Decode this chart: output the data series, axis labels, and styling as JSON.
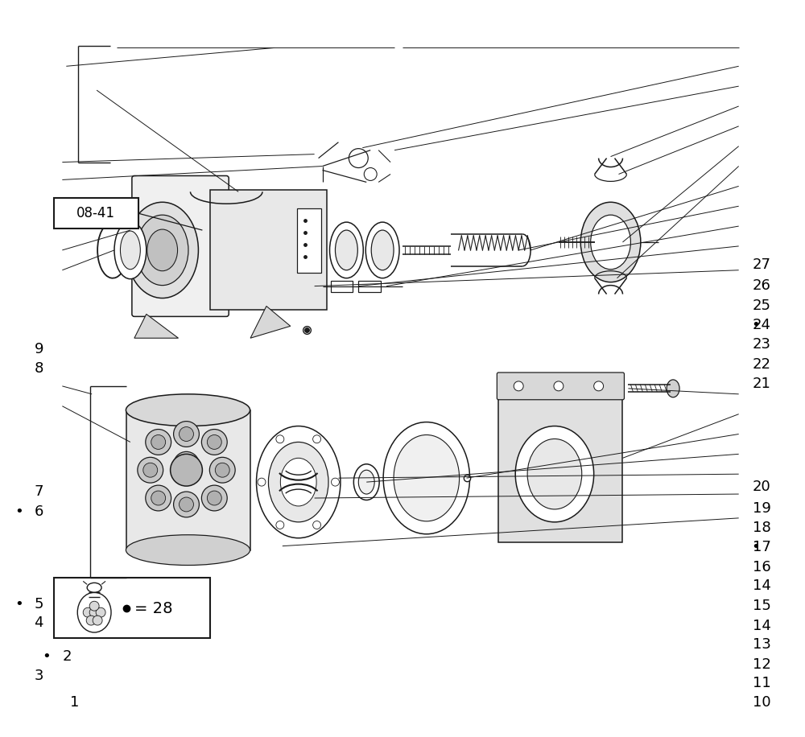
{
  "bg_color": "#ffffff",
  "line_color": "#1a1a1a",
  "fig_width": 10.0,
  "fig_height": 9.16,
  "dpi": 100,
  "label_fs": 13,
  "lw_part": 1.1,
  "lw_call": 0.7,
  "left_labels": {
    "1": [
      0.085,
      0.956,
      false
    ],
    "3": [
      0.04,
      0.92,
      false
    ],
    "2": [
      0.075,
      0.893,
      true
    ],
    "4": [
      0.04,
      0.847,
      false
    ],
    "5": [
      0.04,
      0.822,
      true
    ],
    "6": [
      0.04,
      0.695,
      true
    ],
    "7": [
      0.04,
      0.668,
      false
    ],
    "8": [
      0.04,
      0.5,
      false
    ],
    "9": [
      0.04,
      0.474,
      false
    ]
  },
  "right_labels": {
    "10": [
      0.96,
      0.956,
      false
    ],
    "11": [
      0.96,
      0.93,
      false
    ],
    "12": [
      0.96,
      0.904,
      false
    ],
    "13": [
      0.96,
      0.877,
      false
    ],
    "14a": [
      0.96,
      0.851,
      false
    ],
    "15": [
      0.96,
      0.824,
      false
    ],
    "14b": [
      0.96,
      0.797,
      false
    ],
    "16": [
      0.96,
      0.771,
      false
    ],
    "17": [
      0.96,
      0.744,
      true
    ],
    "18": [
      0.96,
      0.718,
      false
    ],
    "19": [
      0.96,
      0.691,
      false
    ],
    "20": [
      0.96,
      0.662,
      false
    ],
    "21": [
      0.96,
      0.521,
      false
    ],
    "22": [
      0.96,
      0.494,
      false
    ],
    "23": [
      0.96,
      0.467,
      false
    ],
    "24": [
      0.96,
      0.441,
      true
    ],
    "25": [
      0.96,
      0.414,
      false
    ],
    "26": [
      0.96,
      0.387,
      false
    ],
    "27": [
      0.96,
      0.358,
      false
    ]
  }
}
